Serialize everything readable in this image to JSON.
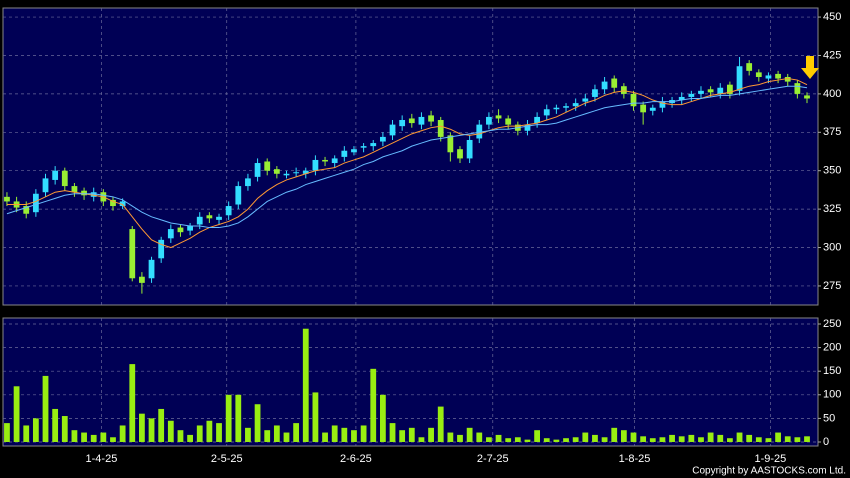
{
  "chart_data": {
    "type": "candlestick",
    "xlim": [
      -0.41,
      84.14
    ],
    "xticks": [
      {
        "value": 9.8,
        "label": "1-4-25"
      },
      {
        "value": 22.8,
        "label": "2-5-25"
      },
      {
        "value": 36.2,
        "label": "2-6-25"
      },
      {
        "value": 50.4,
        "label": "2-7-25"
      },
      {
        "value": 65.1,
        "label": "1-8-25"
      },
      {
        "value": 79.2,
        "label": "1-9-25"
      }
    ],
    "ylim": [
      262.6,
      455.9
    ],
    "yticks": [
      275,
      300,
      325,
      350,
      375,
      400,
      425,
      450
    ],
    "grid": true,
    "up_color": "#33ddff",
    "down_color": "#99ee33",
    "open": [
      333,
      330,
      327,
      323,
      336,
      344,
      350,
      340,
      337,
      333,
      336,
      331,
      327,
      312,
      281,
      280,
      293,
      306,
      313,
      311,
      315,
      321,
      318,
      321,
      328,
      340,
      346,
      356,
      351,
      347,
      349,
      348,
      350,
      357,
      355,
      359,
      362,
      365,
      366,
      369,
      373,
      379,
      384,
      380,
      386,
      383,
      373,
      364,
      358,
      371,
      380,
      386,
      384,
      380,
      376,
      381,
      386,
      390,
      391,
      392,
      395,
      398,
      403,
      410,
      405,
      400,
      393,
      389,
      391,
      394,
      396,
      398,
      400,
      403,
      400,
      406,
      402,
      420,
      414,
      410,
      413,
      411,
      407,
      399
    ],
    "high": [
      336,
      333,
      330,
      338,
      348,
      353,
      352,
      342,
      339,
      339,
      338,
      333,
      332,
      314,
      284,
      294,
      307,
      315,
      315,
      316,
      323,
      323,
      322,
      330,
      343,
      348,
      358,
      358,
      353,
      350,
      352,
      352,
      360,
      359,
      360,
      366,
      366,
      368,
      370,
      375,
      383,
      386,
      387,
      388,
      389,
      385,
      375,
      366,
      373,
      383,
      388,
      390,
      386,
      382,
      383,
      388,
      393,
      393,
      394,
      397,
      400,
      406,
      411,
      412,
      407,
      402,
      395,
      393,
      398,
      398,
      401,
      402,
      405,
      405,
      407,
      408,
      424,
      422,
      416,
      414,
      415,
      413,
      409,
      401
    ],
    "low": [
      327,
      323,
      319,
      320,
      333,
      341,
      337,
      333,
      331,
      330,
      327,
      324,
      325,
      278,
      270,
      277,
      290,
      303,
      307,
      308,
      312,
      316,
      315,
      318,
      325,
      337,
      343,
      347,
      345,
      345,
      346,
      345,
      347,
      353,
      352,
      356,
      360,
      362,
      363,
      366,
      370,
      376,
      378,
      377,
      379,
      369,
      356,
      355,
      355,
      368,
      377,
      381,
      377,
      373,
      373,
      378,
      383,
      387,
      388,
      389,
      392,
      395,
      400,
      401,
      397,
      389,
      380,
      386,
      388,
      391,
      393,
      395,
      397,
      398,
      397,
      397,
      399,
      412,
      408,
      407,
      407,
      405,
      397,
      394
    ],
    "close": [
      330,
      326,
      322,
      335,
      345,
      350,
      340,
      336,
      334,
      336,
      330,
      327,
      330,
      280,
      277,
      292,
      305,
      312,
      310,
      314,
      320,
      319,
      320,
      327,
      340,
      345,
      355,
      350,
      348,
      348,
      349,
      350,
      357,
      356,
      358,
      363,
      364,
      366,
      368,
      372,
      380,
      383,
      381,
      385,
      382,
      372,
      362,
      358,
      370,
      380,
      385,
      384,
      380,
      376,
      380,
      385,
      390,
      391,
      392,
      394,
      397,
      403,
      408,
      404,
      400,
      392,
      388,
      391,
      395,
      396,
      398,
      400,
      402,
      401,
      404,
      400,
      418,
      415,
      411,
      412,
      410,
      408,
      400,
      397
    ],
    "series": [
      {
        "color": "#ff9933",
        "values": [
          328,
          328,
          328,
          330,
          333,
          336,
          337,
          336,
          335,
          334,
          333,
          330,
          328,
          320,
          312,
          305,
          302,
          300,
          303,
          306,
          310,
          313,
          315,
          317,
          320,
          325,
          332,
          337,
          341,
          344,
          346,
          348,
          350,
          351,
          352,
          355,
          357,
          359,
          362,
          365,
          368,
          371,
          374,
          376,
          378,
          379,
          377,
          374,
          373,
          374,
          376,
          378,
          379,
          379,
          380,
          381,
          383,
          385,
          388,
          391,
          394,
          396,
          399,
          401,
          402,
          401,
          399,
          396,
          394,
          393,
          393,
          395,
          397,
          399,
          400,
          401,
          403,
          405,
          406,
          408,
          409,
          410,
          409,
          406
        ]
      },
      {
        "color": "#66bbff",
        "values": [
          322,
          324,
          326,
          328,
          330,
          332,
          334,
          335,
          335,
          335,
          334,
          333,
          331,
          327,
          323,
          320,
          318,
          316,
          315,
          314,
          314,
          313,
          313,
          314,
          316,
          320,
          325,
          330,
          333,
          336,
          338,
          341,
          343,
          345,
          347,
          349,
          351,
          354,
          356,
          359,
          361,
          363,
          366,
          368,
          370,
          371,
          372,
          373,
          374,
          375,
          376,
          377,
          377,
          378,
          379,
          380,
          380,
          381,
          383,
          385,
          387,
          389,
          391,
          392,
          393,
          394,
          394,
          395,
          395,
          395,
          396,
          397,
          397,
          398,
          399,
          399,
          400,
          401,
          402,
          403,
          404,
          405,
          405,
          404
        ]
      }
    ],
    "volume": {
      "type": "bar",
      "color": "#99ee11",
      "ylim": [
        -8.5,
        262.7
      ],
      "yticks": [
        0,
        50,
        100,
        150,
        200,
        250
      ],
      "values": [
        40,
        118,
        35,
        50,
        140,
        70,
        55,
        25,
        20,
        15,
        20,
        10,
        35,
        165,
        60,
        50,
        70,
        45,
        25,
        15,
        35,
        45,
        40,
        100,
        100,
        30,
        80,
        25,
        35,
        20,
        40,
        240,
        105,
        20,
        35,
        30,
        25,
        35,
        155,
        100,
        40,
        25,
        30,
        10,
        30,
        75,
        20,
        15,
        30,
        20,
        10,
        15,
        8,
        10,
        5,
        25,
        8,
        5,
        8,
        10,
        20,
        15,
        10,
        30,
        25,
        20,
        12,
        8,
        10,
        15,
        12,
        15,
        10,
        20,
        15,
        8,
        20,
        15,
        10,
        8,
        20,
        12,
        10,
        12
      ]
    },
    "footer": "Copyright by AASTOCKS.com Ltd."
  }
}
